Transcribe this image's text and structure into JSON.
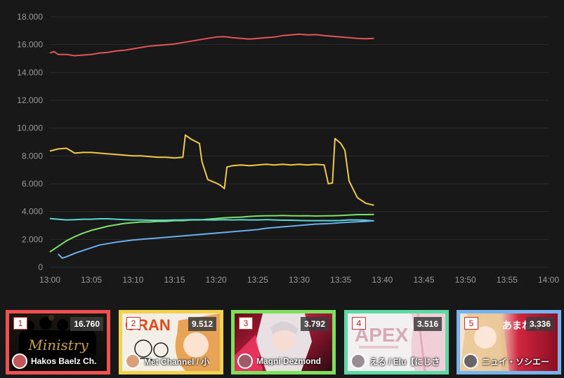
{
  "chart_data": {
    "type": "line",
    "title": "",
    "xlabel": "",
    "ylabel": "",
    "x_ticks": [
      "13:00",
      "13:05",
      "13:10",
      "13:15",
      "13:20",
      "13:25",
      "13:30",
      "13:35",
      "13:40",
      "13:45",
      "13:50",
      "13:55",
      "14:00"
    ],
    "y_ticks": [
      "0",
      "2.000",
      "4.000",
      "6.000",
      "8.000",
      "10.000",
      "12.000",
      "14.000",
      "16.000",
      "18.000"
    ],
    "xlim": [
      0,
      60
    ],
    "ylim": [
      0,
      18000
    ],
    "x_unit": "minutes after 13:00",
    "grid": true,
    "series": [
      {
        "color": "#e05555",
        "points": [
          [
            0,
            15400
          ],
          [
            0.5,
            15500
          ],
          [
            1,
            15300
          ],
          [
            2,
            15300
          ],
          [
            3,
            15200
          ],
          [
            4,
            15250
          ],
          [
            5,
            15300
          ],
          [
            6,
            15400
          ],
          [
            7,
            15450
          ],
          [
            8,
            15550
          ],
          [
            9,
            15600
          ],
          [
            10,
            15700
          ],
          [
            11,
            15800
          ],
          [
            12,
            15900
          ],
          [
            13,
            15950
          ],
          [
            14,
            16000
          ],
          [
            15,
            16050
          ],
          [
            16,
            16150
          ],
          [
            17,
            16250
          ],
          [
            18,
            16350
          ],
          [
            19,
            16450
          ],
          [
            20,
            16550
          ],
          [
            21,
            16580
          ],
          [
            22,
            16500
          ],
          [
            23,
            16450
          ],
          [
            24,
            16400
          ],
          [
            25,
            16450
          ],
          [
            26,
            16500
          ],
          [
            27,
            16550
          ],
          [
            28,
            16650
          ],
          [
            29,
            16700
          ],
          [
            30,
            16750
          ],
          [
            31,
            16700
          ],
          [
            32,
            16720
          ],
          [
            33,
            16650
          ],
          [
            34,
            16600
          ],
          [
            35,
            16550
          ],
          [
            36,
            16500
          ],
          [
            37,
            16450
          ],
          [
            38,
            16420
          ],
          [
            39,
            16450
          ]
        ]
      },
      {
        "color": "#f0c94a",
        "points": [
          [
            0,
            8350
          ],
          [
            1,
            8500
          ],
          [
            2,
            8550
          ],
          [
            3,
            8200
          ],
          [
            4,
            8250
          ],
          [
            5,
            8250
          ],
          [
            6,
            8200
          ],
          [
            7,
            8150
          ],
          [
            8,
            8100
          ],
          [
            9,
            8050
          ],
          [
            10,
            8000
          ],
          [
            11,
            8000
          ],
          [
            12,
            7950
          ],
          [
            13,
            7900
          ],
          [
            14,
            7900
          ],
          [
            15,
            7850
          ],
          [
            16,
            7900
          ],
          [
            16.3,
            9500
          ],
          [
            17,
            9200
          ],
          [
            18,
            8900
          ],
          [
            18.3,
            7600
          ],
          [
            19,
            6300
          ],
          [
            20,
            6050
          ],
          [
            20.5,
            5900
          ],
          [
            21,
            5650
          ],
          [
            21.3,
            7200
          ],
          [
            22,
            7300
          ],
          [
            23,
            7350
          ],
          [
            24,
            7300
          ],
          [
            25,
            7350
          ],
          [
            26,
            7400
          ],
          [
            27,
            7350
          ],
          [
            28,
            7400
          ],
          [
            29,
            7350
          ],
          [
            30,
            7400
          ],
          [
            31,
            7350
          ],
          [
            32,
            7400
          ],
          [
            33,
            7350
          ],
          [
            33.5,
            6000
          ],
          [
            34,
            6050
          ],
          [
            34.3,
            9250
          ],
          [
            35,
            8900
          ],
          [
            35.5,
            8400
          ],
          [
            36,
            6200
          ],
          [
            36.5,
            5600
          ],
          [
            37,
            5000
          ],
          [
            38,
            4600
          ],
          [
            39,
            4450
          ]
        ]
      },
      {
        "color": "#7fe06a",
        "points": [
          [
            0,
            1100
          ],
          [
            1,
            1500
          ],
          [
            2,
            1900
          ],
          [
            3,
            2200
          ],
          [
            4,
            2450
          ],
          [
            5,
            2650
          ],
          [
            6,
            2800
          ],
          [
            7,
            2950
          ],
          [
            8,
            3050
          ],
          [
            9,
            3150
          ],
          [
            10,
            3200
          ],
          [
            11,
            3250
          ],
          [
            12,
            3250
          ],
          [
            13,
            3300
          ],
          [
            14,
            3300
          ],
          [
            15,
            3350
          ],
          [
            16,
            3350
          ],
          [
            17,
            3400
          ],
          [
            18,
            3400
          ],
          [
            19,
            3450
          ],
          [
            20,
            3500
          ],
          [
            21,
            3550
          ],
          [
            22,
            3580
          ],
          [
            23,
            3600
          ],
          [
            24,
            3650
          ],
          [
            25,
            3680
          ],
          [
            26,
            3700
          ],
          [
            27,
            3700
          ],
          [
            28,
            3720
          ],
          [
            29,
            3700
          ],
          [
            30,
            3690
          ],
          [
            31,
            3700
          ],
          [
            32,
            3680
          ],
          [
            33,
            3690
          ],
          [
            34,
            3700
          ],
          [
            35,
            3720
          ],
          [
            36,
            3750
          ],
          [
            37,
            3780
          ],
          [
            38,
            3780
          ],
          [
            39,
            3790
          ]
        ]
      },
      {
        "color": "#5ad8d2",
        "points": [
          [
            0,
            3500
          ],
          [
            1,
            3450
          ],
          [
            2,
            3400
          ],
          [
            3,
            3420
          ],
          [
            4,
            3450
          ],
          [
            5,
            3450
          ],
          [
            6,
            3480
          ],
          [
            7,
            3480
          ],
          [
            8,
            3450
          ],
          [
            9,
            3420
          ],
          [
            10,
            3400
          ],
          [
            11,
            3400
          ],
          [
            12,
            3380
          ],
          [
            13,
            3380
          ],
          [
            14,
            3380
          ],
          [
            15,
            3400
          ],
          [
            16,
            3400
          ],
          [
            17,
            3420
          ],
          [
            18,
            3420
          ],
          [
            19,
            3400
          ],
          [
            20,
            3400
          ],
          [
            21,
            3420
          ],
          [
            22,
            3400
          ],
          [
            23,
            3420
          ],
          [
            24,
            3400
          ],
          [
            25,
            3400
          ],
          [
            26,
            3420
          ],
          [
            27,
            3400
          ],
          [
            28,
            3380
          ],
          [
            29,
            3380
          ],
          [
            30,
            3360
          ],
          [
            31,
            3350
          ],
          [
            32,
            3350
          ],
          [
            33,
            3350
          ],
          [
            34,
            3350
          ],
          [
            35,
            3360
          ],
          [
            36,
            3400
          ],
          [
            37,
            3400
          ],
          [
            38,
            3380
          ],
          [
            39,
            3330
          ]
        ]
      },
      {
        "color": "#6aaef0",
        "points": [
          [
            1,
            950
          ],
          [
            1.5,
            650
          ],
          [
            2,
            750
          ],
          [
            3,
            1000
          ],
          [
            4,
            1200
          ],
          [
            5,
            1400
          ],
          [
            6,
            1600
          ],
          [
            7,
            1700
          ],
          [
            8,
            1800
          ],
          [
            9,
            1880
          ],
          [
            10,
            1950
          ],
          [
            11,
            2000
          ],
          [
            12,
            2050
          ],
          [
            13,
            2100
          ],
          [
            14,
            2150
          ],
          [
            15,
            2200
          ],
          [
            16,
            2250
          ],
          [
            17,
            2300
          ],
          [
            18,
            2350
          ],
          [
            19,
            2400
          ],
          [
            20,
            2450
          ],
          [
            21,
            2500
          ],
          [
            22,
            2550
          ],
          [
            23,
            2600
          ],
          [
            24,
            2650
          ],
          [
            25,
            2700
          ],
          [
            26,
            2800
          ],
          [
            27,
            2850
          ],
          [
            28,
            2900
          ],
          [
            29,
            2950
          ],
          [
            30,
            3000
          ],
          [
            31,
            3050
          ],
          [
            32,
            3100
          ],
          [
            33,
            3120
          ],
          [
            34,
            3150
          ],
          [
            35,
            3200
          ],
          [
            36,
            3230
          ],
          [
            37,
            3260
          ],
          [
            38,
            3300
          ],
          [
            39,
            3336
          ]
        ]
      }
    ]
  },
  "ranking": [
    {
      "rank": "1",
      "count": "16.760",
      "name": "Hakos Baelz Ch.",
      "color": "#f0504f",
      "thumb_icon": "ministry-thumbnail-icon",
      "thumb_text": "Ministry"
    },
    {
      "rank": "2",
      "count": "9.512",
      "name": "Met Channel / 小",
      "color": "#f3d24e",
      "thumb_icon": "oran-thumbnail-icon",
      "thumb_text": "ORAN"
    },
    {
      "rank": "3",
      "count": "3.792",
      "name": "Magni Dezmond",
      "color": "#7de15c",
      "thumb_icon": "magni-thumbnail-icon",
      "thumb_text": ""
    },
    {
      "rank": "4",
      "count": "3.516",
      "name": "える / Elu【にじさ",
      "color": "#5ed9a6",
      "thumb_icon": "apex-thumbnail-icon",
      "thumb_text": "APEX"
    },
    {
      "rank": "5",
      "count": "3.336",
      "name": "ニュイ・ソシエー",
      "color": "#76b4ee",
      "thumb_icon": "anime-thumbnail-icon",
      "thumb_text": "あまねく"
    }
  ]
}
